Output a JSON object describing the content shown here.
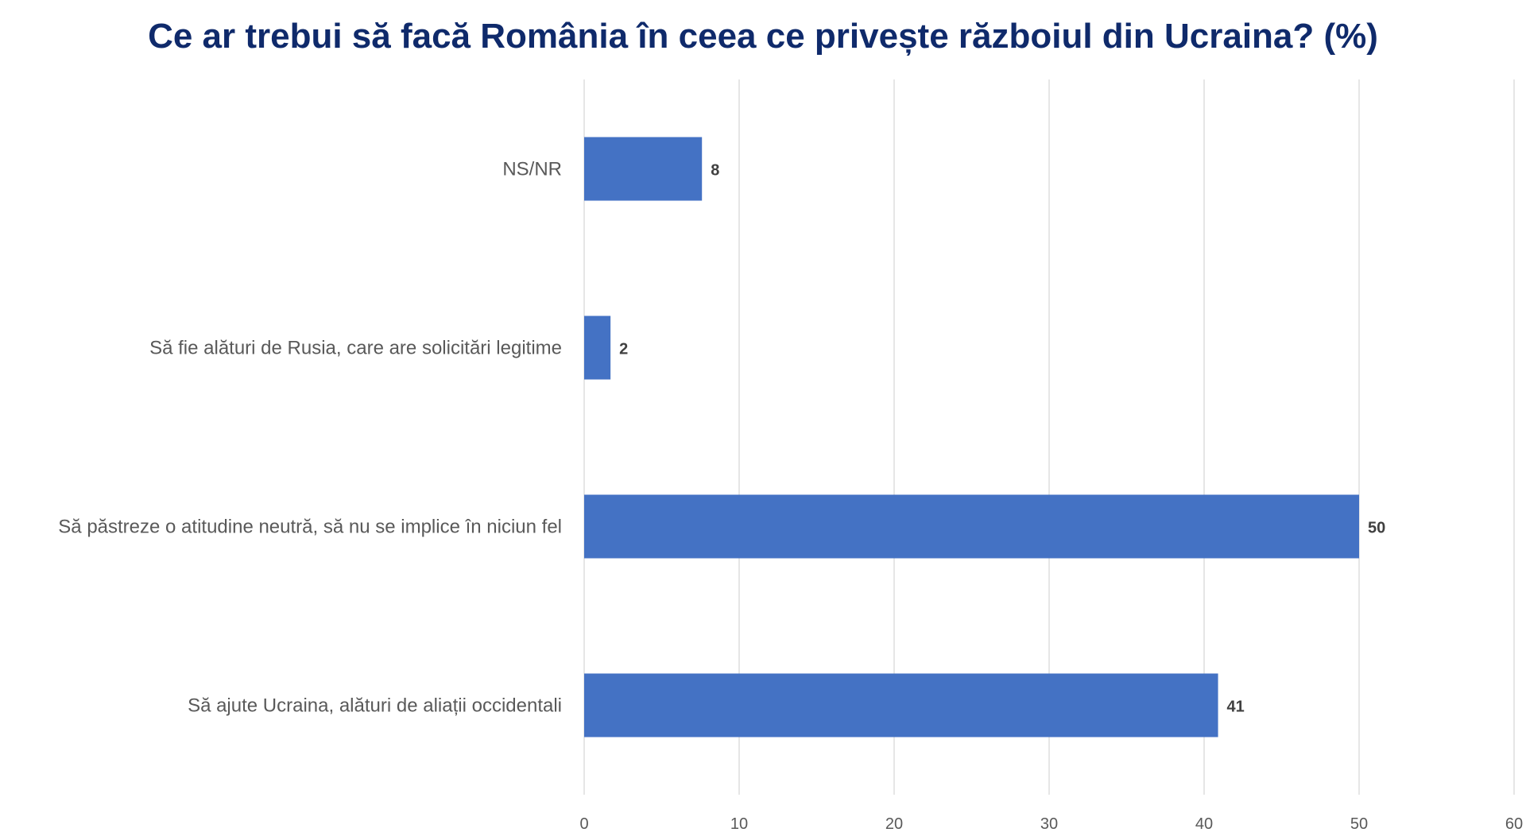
{
  "chart_data": {
    "type": "bar",
    "orientation": "horizontal",
    "title": "Ce ar trebui să facă România în ceea ce privește războiul din Ucraina? (%)",
    "categories": [
      "NS/NR",
      "Să fie alături de Rusia, care are solicitări legitime",
      "Să păstreze o atitudine neutră, să nu se implice în niciun fel",
      "Să ajute Ucraina, alături de aliații occidentali"
    ],
    "values": [
      7.6,
      1.7,
      50,
      40.9
    ],
    "data_labels": [
      "8",
      "2",
      "50",
      "41"
    ],
    "xlim": [
      0,
      60
    ],
    "ticks": [
      "0",
      "10",
      "20",
      "30",
      "40",
      "50",
      "60"
    ],
    "tick_values": [
      0,
      10,
      20,
      30,
      40,
      50,
      60
    ],
    "grid": "vertical",
    "legend": "none",
    "bar_color": "#4472c4",
    "title_color": "#0f2a6b"
  }
}
